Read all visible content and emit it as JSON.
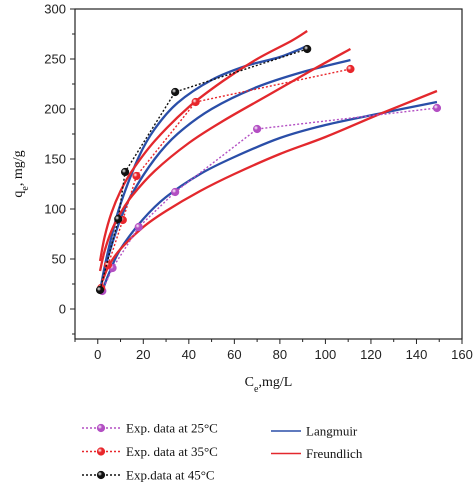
{
  "chart_data": {
    "type": "scatter",
    "xlabel": "C",
    "xlabel_sub": "e",
    "xlabel_rest": ",mg/L",
    "ylabel": "q",
    "ylabel_sub": "e",
    "ylabel_rest": ", mg/g",
    "xlim": [
      -10,
      160
    ],
    "ylim": [
      -30,
      300
    ],
    "x_ticks": [
      0,
      20,
      40,
      60,
      80,
      100,
      120,
      140,
      160
    ],
    "y_ticks": [
      0,
      50,
      100,
      150,
      200,
      250,
      300
    ],
    "grid": false,
    "legend_position": "bottom",
    "colors": {
      "exp25": "#b34fc3",
      "exp35": "#e8262b",
      "exp45": "#111111",
      "langmuir": "#2a4ea8",
      "freundlich": "#e3282d"
    },
    "series": [
      {
        "name": "Exp. data at 25°C",
        "kind": "experimental",
        "x": [
          2,
          6.5,
          18,
          34,
          70,
          149
        ],
        "y": [
          18,
          41,
          82,
          117,
          180,
          201
        ]
      },
      {
        "name": "Exp. data at 35°C",
        "kind": "experimental",
        "x": [
          1.5,
          4.5,
          11,
          17,
          43,
          111
        ],
        "y": [
          21,
          44,
          89,
          133,
          207,
          240
        ]
      },
      {
        "name": "Exp.data at 45°C",
        "kind": "experimental",
        "x": [
          1,
          9,
          12,
          34,
          92
        ],
        "y": [
          19,
          90,
          137,
          217,
          260
        ]
      },
      {
        "name": "Langmuir",
        "kind": "fit",
        "fits": [
          {
            "x": [
              1,
              3,
              6,
              10,
              18,
              25,
              35,
              50,
              65,
              80,
              92
            ],
            "y": [
              18,
              42,
              72,
              105,
              152,
              180,
              206,
              229,
              243,
              252,
              263
            ]
          },
          {
            "x": [
              1,
              3,
              6,
              10,
              15,
              25,
              35,
              50,
              70,
              90,
              111
            ],
            "y": [
              18,
              39,
              63,
              90,
              115,
              150,
              175,
              200,
              222,
              237,
              249
            ]
          },
          {
            "x": [
              2,
              5,
              10,
              20,
              30,
              45,
              60,
              80,
              100,
              125,
              149
            ],
            "y": [
              18,
              36,
              60,
              90,
              112,
              135,
              152,
              171,
              184,
              196,
              207
            ]
          }
        ]
      },
      {
        "name": "Freundlich",
        "kind": "fit",
        "fits": [
          {
            "x": [
              1,
              3,
              6,
              10,
              15,
              25,
              40,
              55,
              70,
              85,
              92
            ],
            "y": [
              48,
              72,
              96,
              118,
              138,
              168,
              202,
              228,
              250,
              268,
              278
            ]
          },
          {
            "x": [
              1,
              3,
              6,
              10,
              15,
              25,
              40,
              55,
              75,
              95,
              111
            ],
            "y": [
              38,
              58,
              78,
              96,
              113,
              138,
              166,
              188,
              214,
              240,
              260
            ]
          },
          {
            "x": [
              2,
              5,
              10,
              20,
              30,
              45,
              60,
              80,
              100,
              125,
              149
            ],
            "y": [
              28,
              44,
              60,
              82,
              98,
              118,
              135,
              155,
              172,
              196,
              218
            ]
          }
        ]
      }
    ]
  }
}
